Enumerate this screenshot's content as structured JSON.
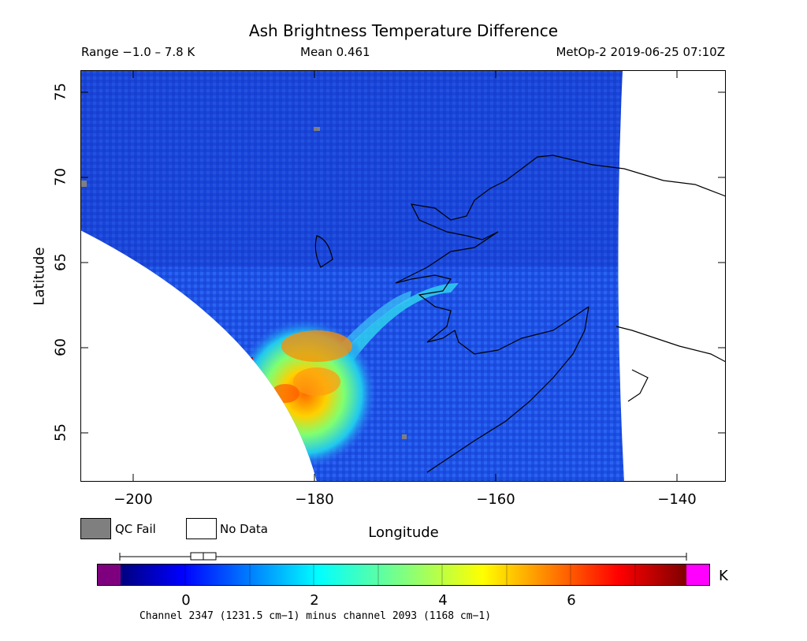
{
  "title": "Ash Brightness Temperature Difference",
  "range_text": "Range −1.0 – 7.8 K",
  "mean_text": "Mean 0.461",
  "satellite_text": "MetOp-2 2019-06-25 07:10Z",
  "chart_data": {
    "type": "heatmap",
    "title": "Ash Brightness Temperature Difference",
    "xlabel": "Longitude",
    "ylabel": "Latitude",
    "x_ticks": [
      "−200",
      "−180",
      "−160",
      "−140"
    ],
    "y_ticks": [
      "75",
      "70",
      "65",
      "60",
      "55"
    ],
    "xlim": [
      -206,
      -135
    ],
    "ylim": [
      52,
      76
    ],
    "value_range": [
      -1.0,
      7.8
    ],
    "mean": 0.461,
    "hotspots": [
      {
        "lon": -179,
        "lat": 57.5,
        "value": 6.2
      },
      {
        "lon": -178,
        "lat": 60.0,
        "value": 6.5
      },
      {
        "lon": -182,
        "lat": 57.0,
        "value": 6.0
      },
      {
        "lon": -187,
        "lat": 59.0,
        "value": 7.5
      }
    ]
  },
  "legend": {
    "qc_fail": "QC Fail",
    "no_data": "No Data",
    "qc_fail_color": "#7f7f7f",
    "no_data_color": "#ffffff"
  },
  "colorbar": {
    "ticks": [
      "0",
      "2",
      "4",
      "6"
    ],
    "unit": "K",
    "min": -1.0,
    "max": 7.8,
    "under_color": "#7f007f",
    "over_color": "#ff00ff"
  },
  "channel_text": "Channel 2347 (1231.5 cm−1) minus channel 2093 (1168 cm−1)"
}
